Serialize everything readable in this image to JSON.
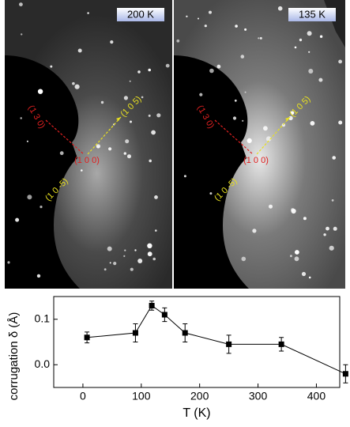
{
  "panels": [
    {
      "temperature": "200 K",
      "labels": [
        "(1 3 0)",
        "(1 0 5)",
        "(1 0 0)",
        "(1 0 -5)"
      ]
    },
    {
      "temperature": "135 K",
      "labels": [
        "(1 3 0)",
        "(1 0 5)",
        "(1 0 0)",
        "(1 0 -5)"
      ]
    }
  ],
  "chart_data": {
    "type": "line",
    "x_label": "T (K)",
    "y_label": "corrugation δ (Å)",
    "x": [
      7,
      90,
      118,
      140,
      175,
      250,
      340,
      450
    ],
    "values": [
      0.06,
      0.07,
      0.13,
      0.11,
      0.07,
      0.045,
      0.045,
      -0.02
    ],
    "errors": [
      0.012,
      0.02,
      0.01,
      0.015,
      0.02,
      0.02,
      0.015,
      0.02
    ],
    "color": "#000000",
    "xlim": [
      -50,
      440
    ],
    "xticks": [
      0,
      100,
      200,
      300,
      400
    ],
    "ylim": [
      -0.05,
      0.15
    ],
    "yticks": [
      {
        "value": 0,
        "label": "0.0"
      },
      0.1
    ]
  }
}
